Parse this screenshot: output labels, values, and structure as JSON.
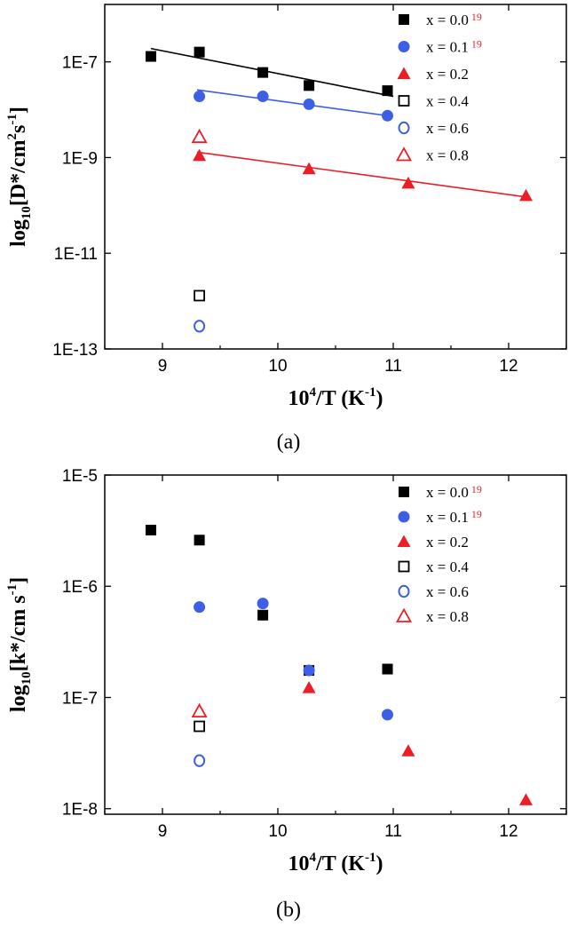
{
  "colors": {
    "black": "#000000",
    "blue": "#3d5fe6",
    "red": "#ee1c24",
    "ref": "#e8242c"
  },
  "chart_data": [
    {
      "type": "scatter",
      "panel_label": "(a)",
      "xlabel": {
        "base": "10",
        "sup": "4",
        "rest": "/T (K",
        "sup2": "-1",
        "close": ")"
      },
      "ylabel": {
        "pre": "log",
        "sub": "10",
        "mid": "[D*/cm",
        "sup": "2",
        "mid2": "s",
        "sup2": "-1",
        "close": "]"
      },
      "xlim": [
        8.5,
        12.5
      ],
      "ylim_log10": [
        -13,
        -5.8
      ],
      "yscale": "log",
      "xticks": [
        9,
        10,
        11,
        12
      ],
      "xtick_labels": [
        "9",
        "10",
        "11",
        "12"
      ],
      "yticks": [
        1e-13,
        1e-11,
        1e-09,
        1e-07
      ],
      "ytick_labels": [
        "1E-13",
        "1E-11",
        "1E-9",
        "1E-7"
      ],
      "legend_position": "top-right",
      "series": [
        {
          "name": "x = 0.0",
          "ref": "19",
          "marker": "filled-square",
          "color": "#000000",
          "x": [
            8.9,
            9.32,
            9.87,
            10.27,
            10.95
          ],
          "y": [
            1.3e-07,
            1.6e-07,
            6e-08,
            3.2e-08,
            2.5e-08
          ],
          "fit": {
            "x": [
              8.9,
              11.0
            ],
            "y": [
              1.9e-07,
              1.9e-08
            ]
          }
        },
        {
          "name": "x = 0.1",
          "ref": "19",
          "marker": "filled-circle",
          "color": "#3d5fe6",
          "x": [
            9.32,
            9.87,
            10.27,
            10.95
          ],
          "y": [
            1.9e-08,
            1.9e-08,
            1.3e-08,
            7.5e-09
          ],
          "fit": {
            "x": [
              9.3,
              10.95
            ],
            "y": [
              2.6e-08,
              7.5e-09
            ]
          }
        },
        {
          "name": "x = 0.2",
          "ref": "",
          "marker": "filled-triangle",
          "color": "#ee1c24",
          "x": [
            9.32,
            10.27,
            11.13,
            12.15
          ],
          "y": [
            1.1e-09,
            5.8e-10,
            2.9e-10,
            1.6e-10
          ],
          "fit": {
            "x": [
              9.3,
              12.15
            ],
            "y": [
              1.3e-09,
              1.5e-10
            ]
          }
        },
        {
          "name": "x = 0.4",
          "ref": "",
          "marker": "open-square",
          "color": "#000000",
          "x": [
            9.32
          ],
          "y": [
            1.3e-12
          ]
        },
        {
          "name": "x = 0.6",
          "ref": "",
          "marker": "open-circle",
          "color": "#3d5fe6",
          "x": [
            9.32
          ],
          "y": [
            3e-13
          ]
        },
        {
          "name": "x = 0.8",
          "ref": "",
          "marker": "open-triangle",
          "color": "#ee1c24",
          "x": [
            9.32
          ],
          "y": [
            2.7e-09
          ]
        }
      ]
    },
    {
      "type": "scatter",
      "panel_label": "(b)",
      "xlabel": {
        "base": "10",
        "sup": "4",
        "rest": "/T (K",
        "sup2": "-1",
        "close": ")"
      },
      "ylabel": {
        "pre": "log",
        "sub": "10",
        "mid": "[k*/cm s",
        "sup": "-1",
        "mid2": "",
        "sup2": "",
        "close": "]"
      },
      "xlim": [
        8.5,
        12.5
      ],
      "ylim_log10": [
        -8.05,
        -5
      ],
      "yscale": "log",
      "xticks": [
        9,
        10,
        11,
        12
      ],
      "xtick_labels": [
        "9",
        "10",
        "11",
        "12"
      ],
      "yticks": [
        1e-08,
        1e-07,
        1e-06,
        1e-05
      ],
      "ytick_labels": [
        "1E-8",
        "1E-7",
        "1E-6",
        "1E-5"
      ],
      "legend_position": "top-right",
      "series": [
        {
          "name": "x = 0.0",
          "ref": "19",
          "marker": "filled-square",
          "color": "#000000",
          "x": [
            8.9,
            9.32,
            9.87,
            10.27,
            10.95
          ],
          "y": [
            3.2e-06,
            2.6e-06,
            5.5e-07,
            1.75e-07,
            1.8e-07
          ]
        },
        {
          "name": "x = 0.1",
          "ref": "19",
          "marker": "filled-circle",
          "color": "#3d5fe6",
          "x": [
            9.32,
            9.87,
            10.27,
            10.95
          ],
          "y": [
            6.5e-07,
            7e-07,
            1.75e-07,
            7e-08
          ]
        },
        {
          "name": "x = 0.2",
          "ref": "",
          "marker": "filled-triangle",
          "color": "#ee1c24",
          "x": [
            10.27,
            11.13,
            12.15
          ],
          "y": [
            1.22e-07,
            3.3e-08,
            1.2e-08
          ]
        },
        {
          "name": "x = 0.4",
          "ref": "",
          "marker": "open-square",
          "color": "#000000",
          "x": [
            9.32
          ],
          "y": [
            5.5e-08
          ]
        },
        {
          "name": "x = 0.6",
          "ref": "",
          "marker": "open-circle",
          "color": "#3d5fe6",
          "x": [
            9.32
          ],
          "y": [
            2.7e-08
          ]
        },
        {
          "name": "x = 0.8",
          "ref": "",
          "marker": "open-triangle",
          "color": "#ee1c24",
          "x": [
            9.32
          ],
          "y": [
            7.5e-08
          ]
        }
      ]
    }
  ]
}
